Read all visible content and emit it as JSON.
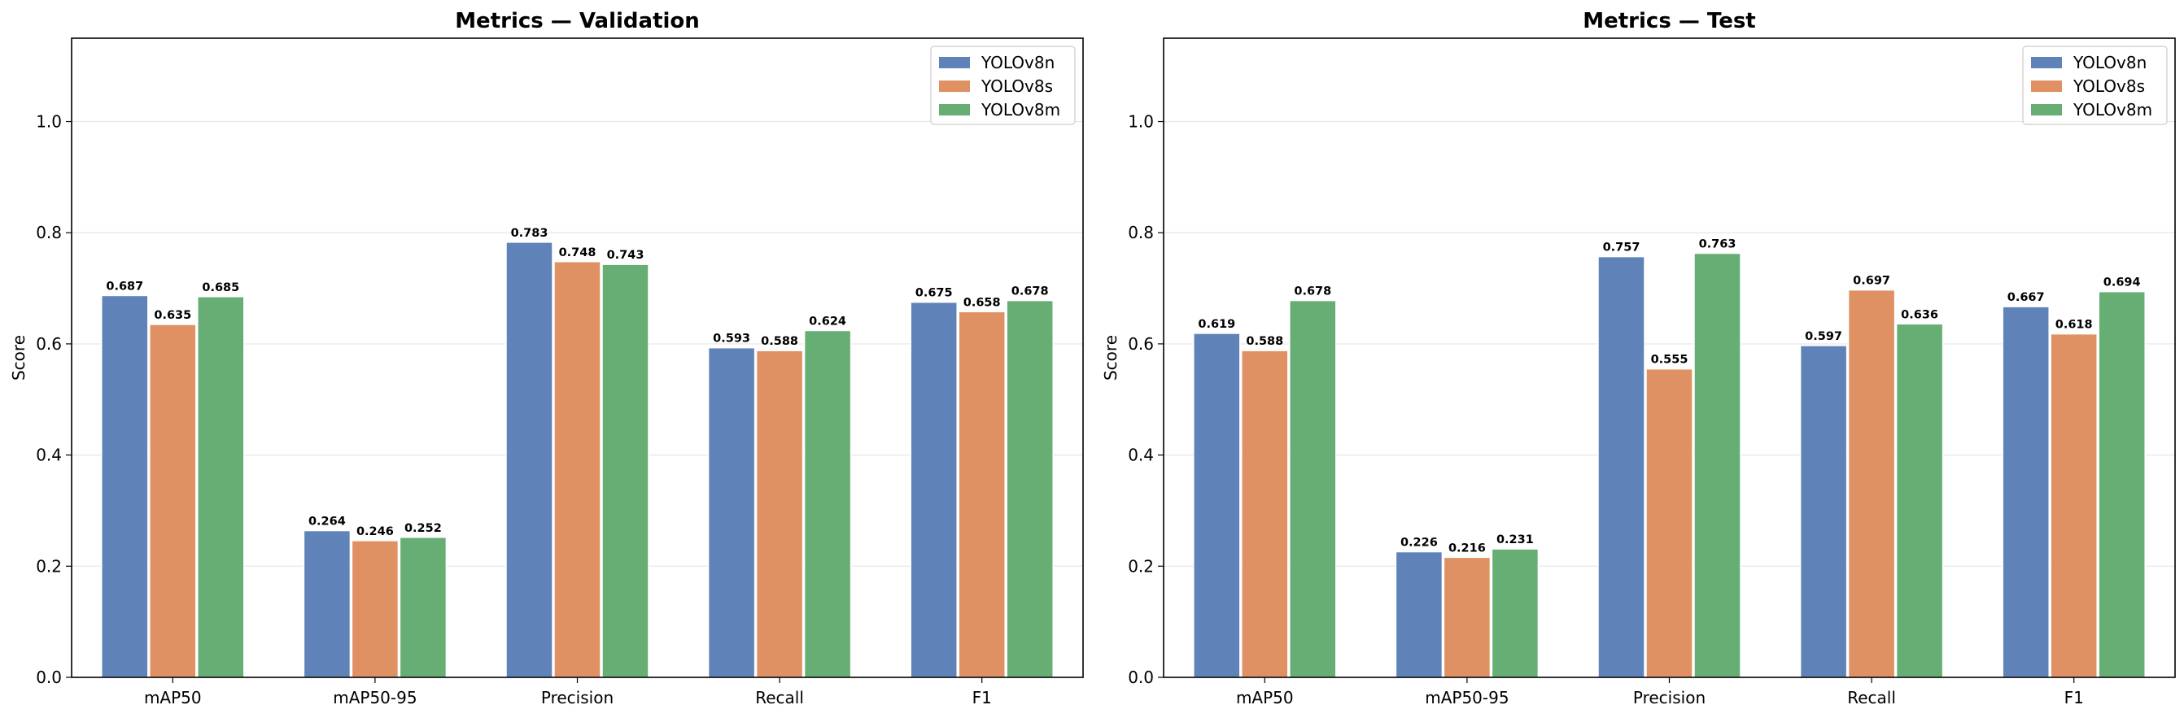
{
  "chart_data": [
    {
      "type": "bar",
      "title": "Metrics — Validation",
      "xlabel": "",
      "ylabel": "Score",
      "ylim": [
        0,
        1.15
      ],
      "yticks": [
        "0.0",
        "0.2",
        "0.4",
        "0.6",
        "0.8",
        "1.0"
      ],
      "grid": "horizontal",
      "legend": "top-right",
      "categories": [
        "mAP50",
        "mAP50-95",
        "Precision",
        "Recall",
        "F1"
      ],
      "series": [
        {
          "name": "YOLOv8n",
          "color": "#5f82b8",
          "values": [
            0.687,
            0.264,
            0.783,
            0.593,
            0.675
          ],
          "labels": [
            "0.687",
            "0.264",
            "0.783",
            "0.593",
            "0.675"
          ]
        },
        {
          "name": "YOLOv8s",
          "color": "#e09163",
          "values": [
            0.635,
            0.246,
            0.748,
            0.588,
            0.658
          ],
          "labels": [
            "0.635",
            "0.246",
            "0.748",
            "0.588",
            "0.658"
          ]
        },
        {
          "name": "YOLOv8m",
          "color": "#66ae74",
          "values": [
            0.685,
            0.252,
            0.743,
            0.624,
            0.678
          ],
          "labels": [
            "0.685",
            "0.252",
            "0.743",
            "0.624",
            "0.678"
          ]
        }
      ]
    },
    {
      "type": "bar",
      "title": "Metrics — Test",
      "xlabel": "",
      "ylabel": "Score",
      "ylim": [
        0,
        1.15
      ],
      "yticks": [
        "0.0",
        "0.2",
        "0.4",
        "0.6",
        "0.8",
        "1.0"
      ],
      "grid": "horizontal",
      "legend": "top-right",
      "categories": [
        "mAP50",
        "mAP50-95",
        "Precision",
        "Recall",
        "F1"
      ],
      "series": [
        {
          "name": "YOLOv8n",
          "color": "#5f82b8",
          "values": [
            0.619,
            0.226,
            0.757,
            0.597,
            0.667
          ],
          "labels": [
            "0.619",
            "0.226",
            "0.757",
            "0.597",
            "0.667"
          ]
        },
        {
          "name": "YOLOv8s",
          "color": "#e09163",
          "values": [
            0.588,
            0.216,
            0.555,
            0.697,
            0.618
          ],
          "labels": [
            "0.588",
            "0.216",
            "0.555",
            "0.697",
            "0.618"
          ]
        },
        {
          "name": "YOLOv8m",
          "color": "#66ae74",
          "values": [
            0.678,
            0.231,
            0.763,
            0.636,
            0.694
          ],
          "labels": [
            "0.678",
            "0.231",
            "0.763",
            "0.636",
            "0.694"
          ]
        }
      ]
    }
  ]
}
